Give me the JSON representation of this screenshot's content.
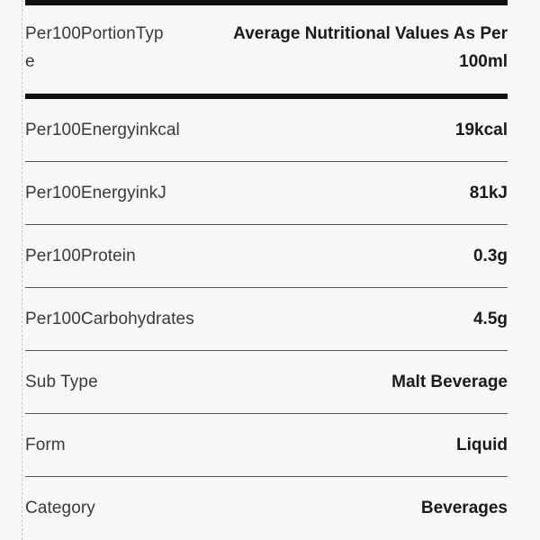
{
  "header": {
    "label": "Per100PortionType",
    "value": "Average Nutritional Values As Per 100ml"
  },
  "rows": [
    {
      "label": "Per100Energyinkcal",
      "value": "19kcal"
    },
    {
      "label": "Per100EnergyinkJ",
      "value": "81kJ"
    },
    {
      "label": "Per100Protein",
      "value": "0.3g"
    },
    {
      "label": "Per100Carbohydrates",
      "value": "4.5g"
    },
    {
      "label": "Sub Type",
      "value": "Malt Beverage"
    },
    {
      "label": "Form",
      "value": "Liquid"
    },
    {
      "label": "Category",
      "value": "Beverages"
    }
  ]
}
